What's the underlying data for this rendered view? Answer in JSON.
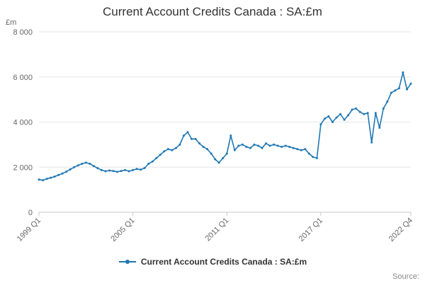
{
  "chart_data": {
    "type": "line",
    "title": "Current Account Credits Canada : SA:£m",
    "ylabel": "£m",
    "xlabel": "",
    "grid": "horizontal",
    "legend_position": "bottom",
    "color": "#1f77b4",
    "ylim": [
      0,
      8000
    ],
    "yticks": [
      {
        "value": 0,
        "label": "0"
      },
      {
        "value": 2000,
        "label": "2 000"
      },
      {
        "value": 4000,
        "label": "4 000"
      },
      {
        "value": 6000,
        "label": "6 000"
      },
      {
        "value": 8000,
        "label": "8 000"
      }
    ],
    "xticks": [
      {
        "index": 0,
        "label": "1999 Q1"
      },
      {
        "index": 24,
        "label": "2005 Q1"
      },
      {
        "index": 48,
        "label": "2011 Q1"
      },
      {
        "index": 72,
        "label": "2017 Q1"
      },
      {
        "index": 95,
        "label": "2022 Q4"
      }
    ],
    "series_name": "Current Account Credits Canada : SA:£m",
    "categories": [
      "1999 Q1",
      "1999 Q2",
      "1999 Q3",
      "1999 Q4",
      "2000 Q1",
      "2000 Q2",
      "2000 Q3",
      "2000 Q4",
      "2001 Q1",
      "2001 Q2",
      "2001 Q3",
      "2001 Q4",
      "2002 Q1",
      "2002 Q2",
      "2002 Q3",
      "2002 Q4",
      "2003 Q1",
      "2003 Q2",
      "2003 Q3",
      "2003 Q4",
      "2004 Q1",
      "2004 Q2",
      "2004 Q3",
      "2004 Q4",
      "2005 Q1",
      "2005 Q2",
      "2005 Q3",
      "2005 Q4",
      "2006 Q1",
      "2006 Q2",
      "2006 Q3",
      "2006 Q4",
      "2007 Q1",
      "2007 Q2",
      "2007 Q3",
      "2007 Q4",
      "2008 Q1",
      "2008 Q2",
      "2008 Q3",
      "2008 Q4",
      "2009 Q1",
      "2009 Q2",
      "2009 Q3",
      "2009 Q4",
      "2010 Q1",
      "2010 Q2",
      "2010 Q3",
      "2010 Q4",
      "2011 Q1",
      "2011 Q2",
      "2011 Q3",
      "2011 Q4",
      "2012 Q1",
      "2012 Q2",
      "2012 Q3",
      "2012 Q4",
      "2013 Q1",
      "2013 Q2",
      "2013 Q3",
      "2013 Q4",
      "2014 Q1",
      "2014 Q2",
      "2014 Q3",
      "2014 Q4",
      "2015 Q1",
      "2015 Q2",
      "2015 Q3",
      "2015 Q4",
      "2016 Q1",
      "2016 Q2",
      "2016 Q3",
      "2016 Q4",
      "2017 Q1",
      "2017 Q2",
      "2017 Q3",
      "2017 Q4",
      "2018 Q1",
      "2018 Q2",
      "2018 Q3",
      "2018 Q4",
      "2019 Q1",
      "2019 Q2",
      "2019 Q3",
      "2019 Q4",
      "2020 Q1",
      "2020 Q2",
      "2020 Q3",
      "2020 Q4",
      "2021 Q1",
      "2021 Q2",
      "2021 Q3",
      "2021 Q4",
      "2022 Q1",
      "2022 Q2",
      "2022 Q3",
      "2022 Q4"
    ],
    "values": [
      1450,
      1420,
      1480,
      1530,
      1580,
      1650,
      1720,
      1800,
      1900,
      2000,
      2080,
      2150,
      2200,
      2150,
      2050,
      1950,
      1870,
      1820,
      1850,
      1830,
      1790,
      1830,
      1870,
      1820,
      1870,
      1920,
      1890,
      1960,
      2150,
      2250,
      2400,
      2550,
      2700,
      2800,
      2750,
      2850,
      3000,
      3400,
      3550,
      3250,
      3250,
      3050,
      2900,
      2800,
      2600,
      2350,
      2200,
      2400,
      2600,
      3400,
      2750,
      2950,
      3000,
      2900,
      2850,
      3000,
      2950,
      2850,
      3050,
      2950,
      3000,
      2950,
      2900,
      2950,
      2900,
      2850,
      2800,
      2750,
      2800,
      2600,
      2450,
      2400,
      3900,
      4150,
      4250,
      4000,
      4200,
      4350,
      4100,
      4300,
      4550,
      4600,
      4450,
      4350,
      4400,
      3100,
      4400,
      3750,
      4600,
      4900,
      5300,
      5400,
      5500,
      6200,
      5450,
      5700
    ]
  },
  "legend": {
    "label": "Current Account Credits Canada : SA:£m"
  },
  "footer": {
    "source": "Source:"
  }
}
